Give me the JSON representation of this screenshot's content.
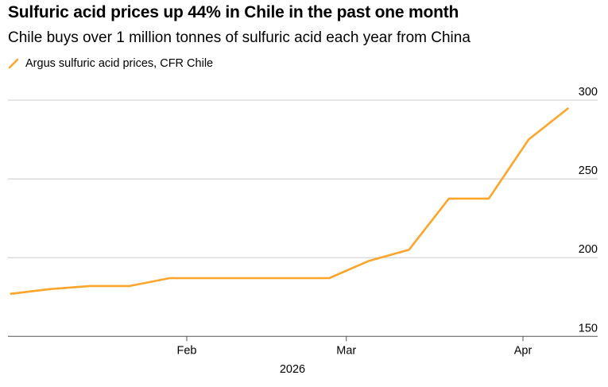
{
  "title": "Sulfuric acid prices up 44% in Chile in the past one month",
  "subtitle": "Chile buys over 1 million tonnes of sulfuric acid each year from China",
  "chart_data": {
    "type": "line",
    "title": "Sulfuric acid prices up 44% in Chile in the past one month",
    "subtitle": "Chile buys over 1 million tonnes of sulfuric acid each year from China",
    "xlabel": "2026",
    "ylabel": "",
    "ylim": [
      150,
      300
    ],
    "yticks": [
      "150",
      "200",
      "250",
      "300"
    ],
    "xticks": [
      {
        "label": "Feb",
        "date": "2026-02-01"
      },
      {
        "label": "Mar",
        "date": "2026-03-01"
      },
      {
        "label": "Apr",
        "date": "2026-04-01"
      }
    ],
    "grid": true,
    "legend_placement": "top-left",
    "series": [
      {
        "name": "Argus sulfuric acid prices, CFR Chile",
        "color": "#FFA52B",
        "x": [
          "2026-01-01",
          "2026-01-08",
          "2026-01-15",
          "2026-01-22",
          "2026-01-29",
          "2026-02-05",
          "2026-02-12",
          "2026-02-19",
          "2026-02-26",
          "2026-03-05",
          "2026-03-12",
          "2026-03-19",
          "2026-03-26",
          "2026-04-02",
          "2026-04-09"
        ],
        "values": [
          177,
          180,
          182,
          182,
          187,
          187,
          187,
          187,
          187,
          198,
          205,
          237.5,
          237.5,
          275,
          295
        ]
      }
    ]
  }
}
